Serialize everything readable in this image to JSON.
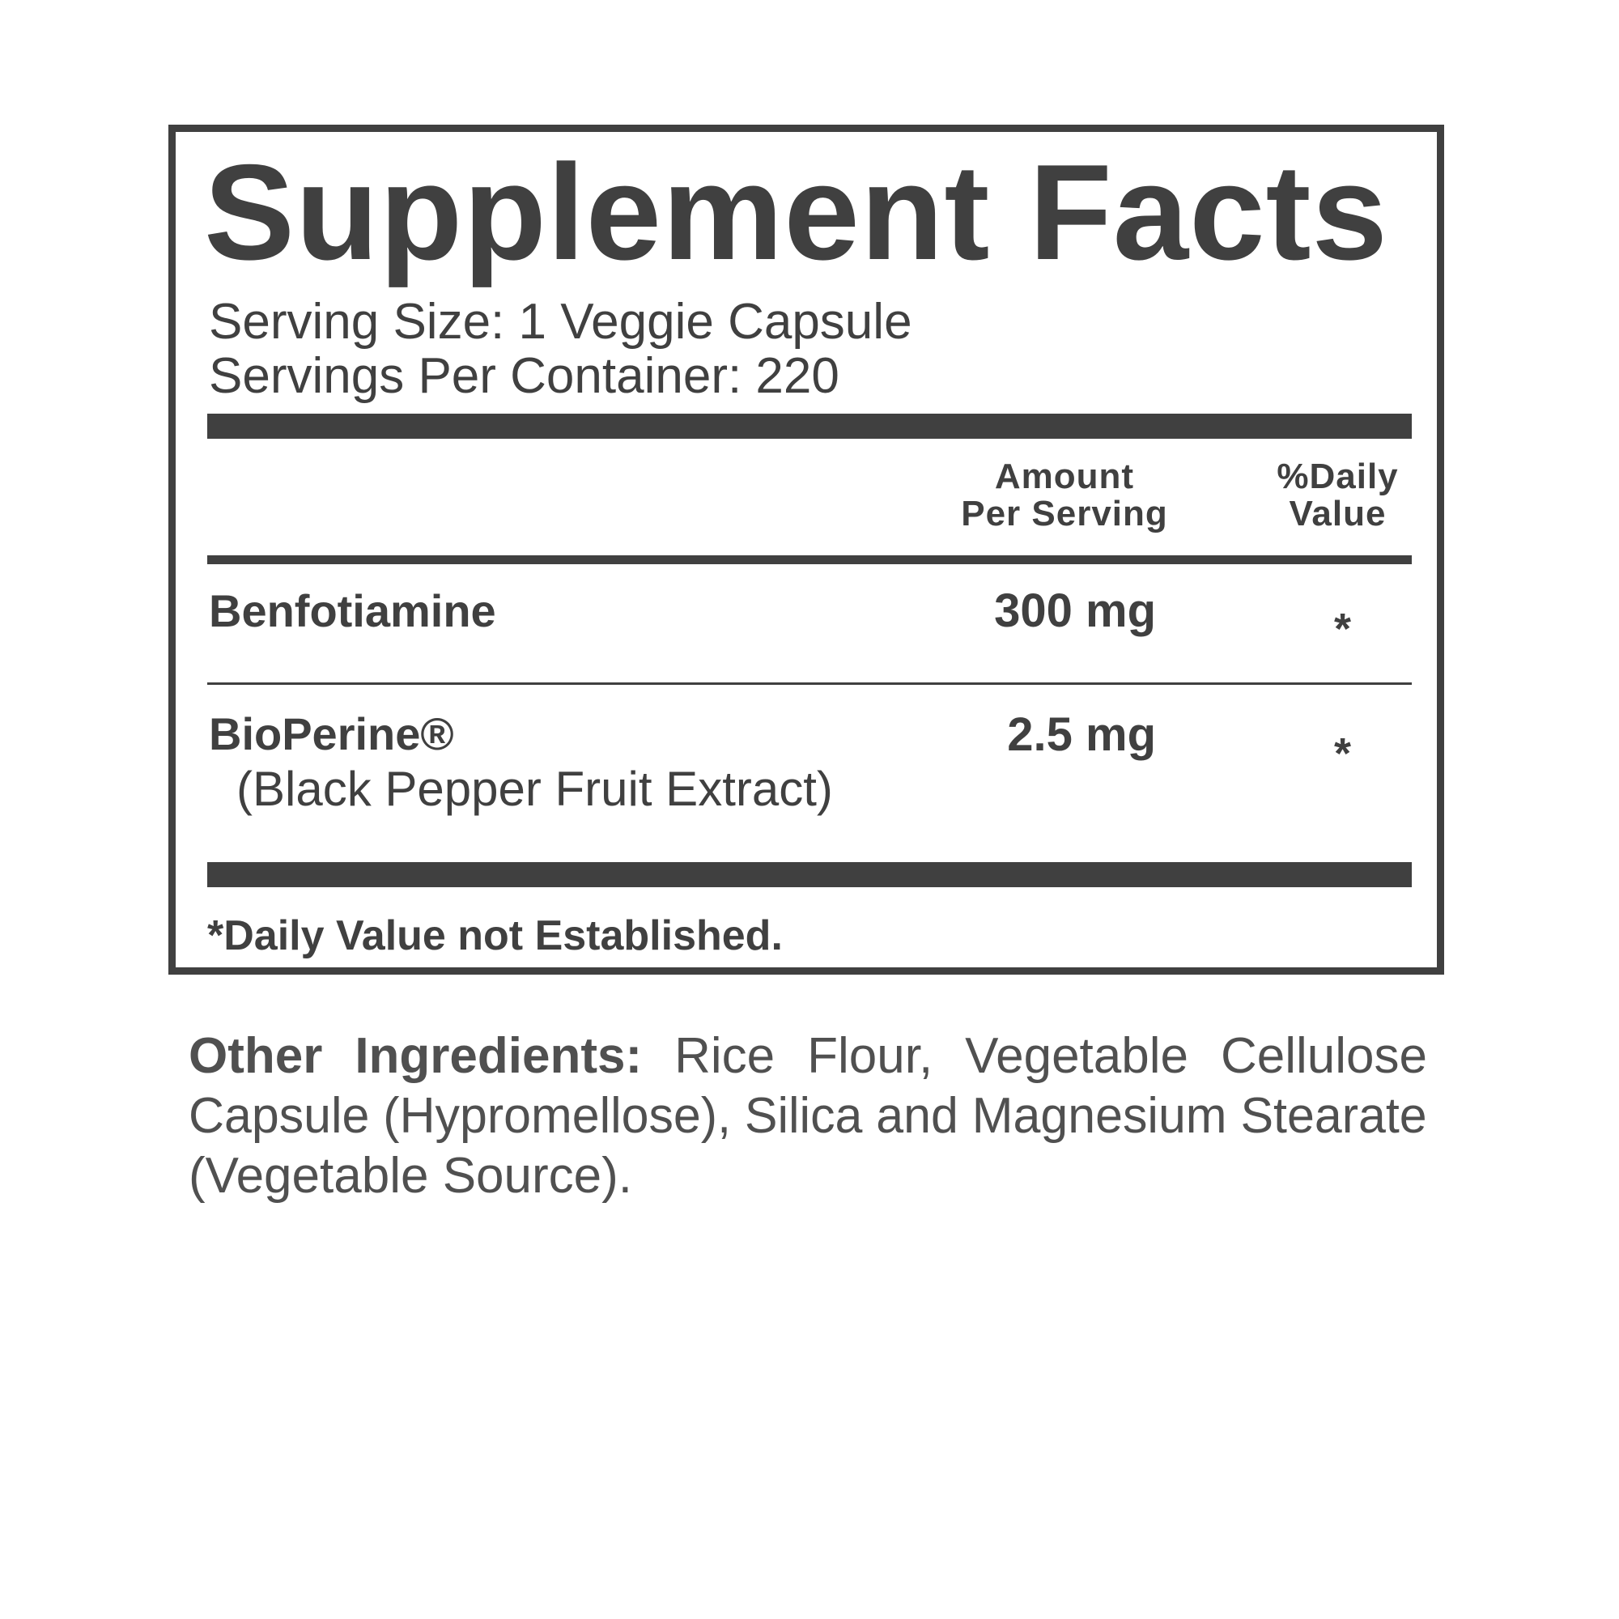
{
  "title": "Supplement Facts",
  "serving_size": "Serving Size: 1 Veggie Capsule",
  "servings_per_container": "Servings Per Container: 220",
  "header": {
    "amount_line1": "Amount",
    "amount_line2": "Per Serving",
    "dv_line1": "%Daily",
    "dv_line2": "Value"
  },
  "rows": [
    {
      "name": "Benfotiamine",
      "amount": "300 mg",
      "dv": "*"
    },
    {
      "name": "BioPerine®",
      "subtitle": "(Black Pepper Fruit Extract)",
      "amount": "2.5 mg",
      "dv": "*"
    }
  ],
  "footnote": "*Daily Value not Established.",
  "other_ingredients": {
    "label": "Other Ingredients:",
    "lines": [
      "Rice Flour, Vegetable Cellulose",
      "Capsule (Hypromellose), Silica and Magnesium Stearate",
      "(Vegetable Source)."
    ]
  },
  "colors": {
    "ink": "#404040"
  }
}
